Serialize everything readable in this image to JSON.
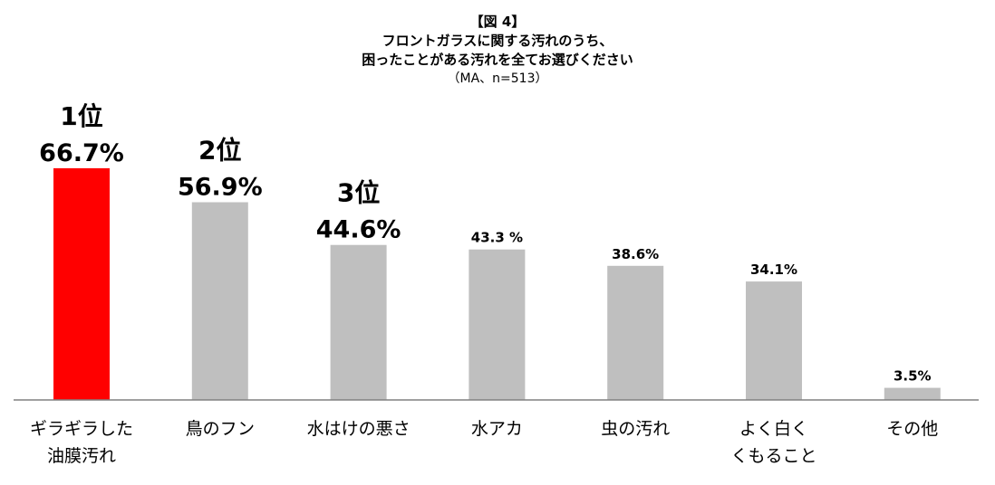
{
  "chart_data": {
    "type": "bar",
    "title_lines": [
      "【図 4】",
      "フロントガラスに関する汚れのうち、",
      "困ったことがある汚れを全てお選びください"
    ],
    "note": "（MA、n=513）",
    "categories": [
      [
        "ギラギラした",
        "油膜汚れ"
      ],
      [
        "鳥のフン"
      ],
      [
        "水はけの悪さ"
      ],
      [
        "水アカ"
      ],
      [
        "虫の汚れ"
      ],
      [
        "よく白く",
        "くもること"
      ],
      [
        "その他"
      ]
    ],
    "values": [
      66.7,
      56.9,
      44.6,
      43.3,
      38.6,
      34.1,
      3.5
    ],
    "value_labels": [
      "66.7%",
      "56.9%",
      "44.6%",
      "43.3 %",
      "38.6%",
      "34.1%",
      "3.5%"
    ],
    "rank_labels": [
      "1位",
      "2位",
      "3位"
    ],
    "ylim": [
      0,
      70
    ],
    "colors": {
      "highlight": "#ff0000",
      "default": "#bfbfbf",
      "axis": "#808080"
    }
  }
}
